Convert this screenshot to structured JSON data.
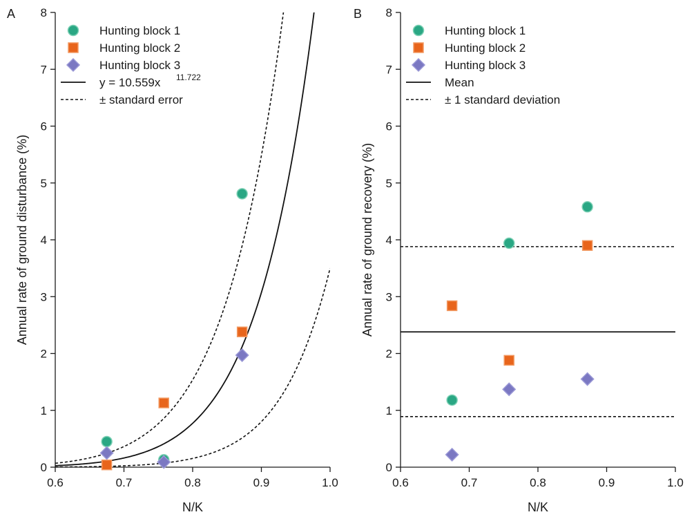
{
  "chart_data": [
    {
      "panel_label": "A",
      "type": "scatter",
      "xlabel": "N/K",
      "ylabel": "Annual rate of ground disturbance (%)",
      "xlim": [
        0.6,
        1.0
      ],
      "ylim": [
        0,
        8
      ],
      "xticks": [
        "0.6",
        "0.7",
        "0.8",
        "0.9",
        "1.0"
      ],
      "yticks": [
        "0",
        "1",
        "2",
        "3",
        "4",
        "5",
        "6",
        "7",
        "8"
      ],
      "grid": false,
      "legend_position": "top-left",
      "series": [
        {
          "name": "Hunting block 1",
          "marker": "circle",
          "color": "#2aa784",
          "x": [
            0.675,
            0.758,
            0.872
          ],
          "y": [
            0.45,
            0.13,
            4.81
          ]
        },
        {
          "name": "Hunting block 2",
          "marker": "square",
          "color": "#e8651c",
          "x": [
            0.675,
            0.758,
            0.872
          ],
          "y": [
            0.04,
            1.13,
            2.38
          ]
        },
        {
          "name": "Hunting block 3",
          "marker": "diamond",
          "color": "#7b78c2",
          "x": [
            0.675,
            0.758,
            0.872
          ],
          "y": [
            0.25,
            0.09,
            1.97
          ]
        }
      ],
      "fit": {
        "label_prefix": "y = 10.559x",
        "label_exponent": "11.722",
        "coefficient": 10.559,
        "exponent": 11.722,
        "style": "solid"
      },
      "error_band": {
        "label": "± standard error",
        "upper": {
          "coefficient": 17.1,
          "exponent": 10.8
        },
        "lower": {
          "coefficient": 3.5,
          "exponent": 14.0
        },
        "style": "dashed"
      }
    },
    {
      "panel_label": "B",
      "type": "scatter",
      "xlabel": "N/K",
      "ylabel": "Annual rate of ground recovery (%)",
      "xlim": [
        0.6,
        1.0
      ],
      "ylim": [
        0,
        8
      ],
      "xticks": [
        "0.6",
        "0.7",
        "0.8",
        "0.9",
        "1.0"
      ],
      "yticks": [
        "0",
        "1",
        "2",
        "3",
        "4",
        "5",
        "6",
        "7",
        "8"
      ],
      "grid": false,
      "legend_position": "top-left",
      "series": [
        {
          "name": "Hunting block 1",
          "marker": "circle",
          "color": "#2aa784",
          "x": [
            0.675,
            0.758,
            0.872
          ],
          "y": [
            1.18,
            3.94,
            4.58
          ]
        },
        {
          "name": "Hunting block 2",
          "marker": "square",
          "color": "#e8651c",
          "x": [
            0.675,
            0.758,
            0.872
          ],
          "y": [
            2.84,
            1.88,
            3.9
          ]
        },
        {
          "name": "Hunting block 3",
          "marker": "diamond",
          "color": "#7b78c2",
          "x": [
            0.675,
            0.758,
            0.872
          ],
          "y": [
            0.22,
            1.37,
            1.55
          ]
        }
      ],
      "mean_line": {
        "label": "Mean",
        "value": 2.38,
        "style": "solid"
      },
      "sd_lines": {
        "label": "± 1 standard deviation",
        "upper": 3.88,
        "lower": 0.89,
        "style": "dashed"
      }
    }
  ]
}
